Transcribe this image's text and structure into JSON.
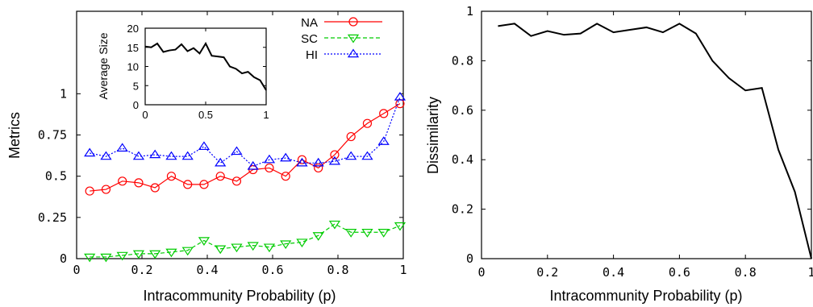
{
  "chart_data": [
    {
      "type": "line",
      "xlabel": "Intracommunity Probability (p)",
      "ylabel": "Metrics",
      "xlim": [
        0,
        1
      ],
      "ylim": [
        0,
        1.5
      ],
      "xticks": [
        "0",
        "0.2",
        "0.4",
        "0.6",
        "0.8",
        "1"
      ],
      "yticks": [
        "0",
        "0.25",
        "0.5",
        "0.75",
        "1"
      ],
      "legend_position": "top-right",
      "x": [
        0.04,
        0.09,
        0.14,
        0.19,
        0.24,
        0.29,
        0.34,
        0.39,
        0.44,
        0.49,
        0.54,
        0.59,
        0.64,
        0.69,
        0.74,
        0.79,
        0.84,
        0.89,
        0.94,
        0.99
      ],
      "series": [
        {
          "name": "NA",
          "color": "#ff0000",
          "marker": "circle",
          "dash": "",
          "values": [
            0.41,
            0.42,
            0.47,
            0.46,
            0.43,
            0.5,
            0.45,
            0.45,
            0.5,
            0.47,
            0.54,
            0.55,
            0.5,
            0.6,
            0.55,
            0.63,
            0.74,
            0.82,
            0.88,
            0.94
          ]
        },
        {
          "name": "SC",
          "color": "#00cc00",
          "marker": "triangle-down",
          "dash": "5,3",
          "values": [
            0.01,
            0.01,
            0.02,
            0.03,
            0.03,
            0.04,
            0.05,
            0.11,
            0.06,
            0.07,
            0.08,
            0.07,
            0.09,
            0.1,
            0.14,
            0.21,
            0.16,
            0.16,
            0.16,
            0.2
          ]
        },
        {
          "name": "HI",
          "color": "#0000ff",
          "marker": "triangle-up",
          "dash": "2,2",
          "values": [
            0.64,
            0.62,
            0.67,
            0.62,
            0.63,
            0.62,
            0.62,
            0.68,
            0.58,
            0.65,
            0.56,
            0.6,
            0.61,
            0.58,
            0.58,
            0.59,
            0.62,
            0.62,
            0.71,
            0.98
          ]
        }
      ],
      "inset": {
        "type": "line",
        "ylabel": "Average Size",
        "xlim": [
          0,
          1
        ],
        "ylim": [
          0,
          20
        ],
        "xticks": [
          "0",
          "0.5",
          "1"
        ],
        "yticks": [
          "0",
          "5",
          "10",
          "15",
          "20"
        ],
        "x": [
          0.0,
          0.05,
          0.1,
          0.15,
          0.2,
          0.25,
          0.3,
          0.35,
          0.4,
          0.45,
          0.5,
          0.55,
          0.6,
          0.65,
          0.7,
          0.75,
          0.8,
          0.85,
          0.9,
          0.95,
          1.0
        ],
        "values": [
          15.2,
          15.0,
          16.0,
          13.8,
          14.2,
          14.4,
          15.8,
          14.0,
          14.8,
          13.4,
          16.0,
          12.8,
          12.6,
          12.4,
          10.0,
          9.4,
          8.2,
          8.6,
          7.2,
          6.4,
          3.8
        ]
      }
    },
    {
      "type": "line",
      "xlabel": "Intracommunity Probability (p)",
      "ylabel": "Dissimilarity",
      "xlim": [
        0,
        1
      ],
      "ylim": [
        0,
        1
      ],
      "xticks": [
        "0",
        "0.2",
        "0.4",
        "0.6",
        "0.8",
        "1"
      ],
      "yticks": [
        "0",
        "0.2",
        "0.4",
        "0.6",
        "0.8",
        "1"
      ],
      "x": [
        0.05,
        0.1,
        0.15,
        0.2,
        0.25,
        0.3,
        0.35,
        0.4,
        0.45,
        0.5,
        0.55,
        0.6,
        0.65,
        0.7,
        0.75,
        0.8,
        0.85,
        0.9,
        0.95,
        1.0
      ],
      "series": [
        {
          "name": "",
          "color": "#000000",
          "values": [
            0.94,
            0.95,
            0.9,
            0.92,
            0.905,
            0.91,
            0.95,
            0.915,
            0.925,
            0.935,
            0.915,
            0.95,
            0.91,
            0.8,
            0.73,
            0.68,
            0.69,
            0.44,
            0.27,
            0.0
          ]
        }
      ]
    }
  ]
}
